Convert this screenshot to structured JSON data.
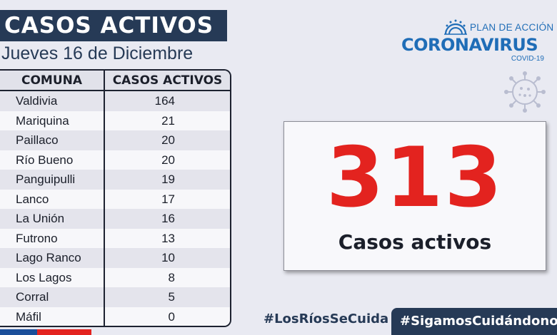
{
  "header": {
    "title": "CASOS ACTIVOS",
    "date": "Jueves 16 de Diciembre"
  },
  "table": {
    "headers": {
      "comuna": "COMUNA",
      "casos": "CASOS ACTIVOS"
    },
    "rows": [
      {
        "comuna": "Valdivia",
        "casos": "164"
      },
      {
        "comuna": "Mariquina",
        "casos": "21"
      },
      {
        "comuna": "Paillaco",
        "casos": "20"
      },
      {
        "comuna": "Río Bueno",
        "casos": "20"
      },
      {
        "comuna": "Panguipulli",
        "casos": "19"
      },
      {
        "comuna": "Lanco",
        "casos": "17"
      },
      {
        "comuna": "La Unión",
        "casos": "16"
      },
      {
        "comuna": "Futrono",
        "casos": "13"
      },
      {
        "comuna": "Lago Ranco",
        "casos": "10"
      },
      {
        "comuna": "Los Lagos",
        "casos": "8"
      },
      {
        "comuna": "Corral",
        "casos": "5"
      },
      {
        "comuna": "Máfil",
        "casos": "0"
      }
    ]
  },
  "logo": {
    "plan": "PLAN DE ACCIÓN",
    "name": "CORONAVIRUS",
    "covid": "COVID-19",
    "icon": "government-seal-icon"
  },
  "virus_icon": "virus-icon",
  "summary": {
    "total": "313",
    "label": "Casos activos"
  },
  "hashtags": {
    "first": "#LosRíosSeCuida",
    "second": "#SigamosCuidándonos"
  },
  "colors": {
    "navy": "#263a56",
    "brand_blue": "#1f6db7",
    "red": "#e3231f",
    "background": "#e9eaf2"
  }
}
